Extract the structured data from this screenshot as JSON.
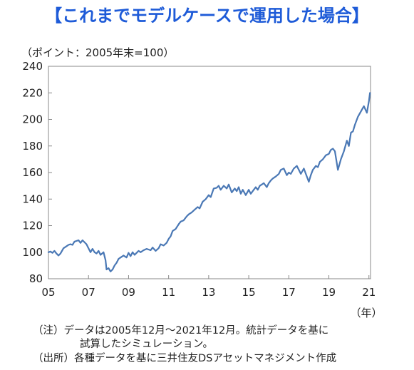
{
  "title": "【これまでモデルケースで運用した場合】",
  "notes": {
    "note_line1": "（注）データは2005年12月～2021年12月。統計データを基に",
    "note_line2": "試算したシミュレーション。",
    "source": "（出所）各種データを基に三井住友DSアセットマネジメント作成"
  },
  "chart_data": {
    "type": "line",
    "title": "",
    "ylabel": "（ポイント：2005年末=100）",
    "xlabel": "（年）",
    "ylim": [
      80,
      240
    ],
    "xlim": [
      2005,
      2021.08
    ],
    "yticks": [
      80,
      100,
      120,
      140,
      160,
      180,
      200,
      220,
      240
    ],
    "xticks": [
      2005,
      2007,
      2009,
      2011,
      2013,
      2015,
      2017,
      2019,
      2021
    ],
    "xtick_labels": [
      "05",
      "07",
      "09",
      "11",
      "13",
      "15",
      "17",
      "19",
      "21"
    ],
    "grid": false,
    "line_color": "#4a78b5",
    "series": [
      {
        "name": "",
        "x": [
          2005.0,
          2005.1,
          2005.2,
          2005.3,
          2005.4,
          2005.5,
          2005.6,
          2005.75,
          2005.9,
          2006.0,
          2006.1,
          2006.2,
          2006.3,
          2006.5,
          2006.6,
          2006.7,
          2006.9,
          2007.0,
          2007.1,
          2007.2,
          2007.3,
          2007.4,
          2007.5,
          2007.6,
          2007.75,
          2007.85,
          2007.9,
          2008.0,
          2008.1,
          2008.2,
          2008.3,
          2008.4,
          2008.5,
          2008.6,
          2008.75,
          2008.9,
          2009.0,
          2009.1,
          2009.2,
          2009.3,
          2009.4,
          2009.5,
          2009.6,
          2009.75,
          2009.9,
          2010.0,
          2010.1,
          2010.2,
          2010.35,
          2010.5,
          2010.6,
          2010.75,
          2010.9,
          2011.0,
          2011.1,
          2011.2,
          2011.35,
          2011.5,
          2011.6,
          2011.75,
          2011.9,
          2012.0,
          2012.15,
          2012.3,
          2012.45,
          2012.55,
          2012.7,
          2012.85,
          2013.0,
          2013.1,
          2013.25,
          2013.4,
          2013.5,
          2013.6,
          2013.75,
          2013.9,
          2014.0,
          2014.15,
          2014.3,
          2014.4,
          2014.5,
          2014.6,
          2014.7,
          2014.85,
          2015.0,
          2015.1,
          2015.2,
          2015.35,
          2015.45,
          2015.55,
          2015.65,
          2015.75,
          2015.9,
          2016.0,
          2016.1,
          2016.2,
          2016.35,
          2016.5,
          2016.6,
          2016.75,
          2016.9,
          2017.0,
          2017.1,
          2017.25,
          2017.4,
          2017.5,
          2017.6,
          2017.75,
          2017.9,
          2018.0,
          2018.1,
          2018.2,
          2018.35,
          2018.45,
          2018.55,
          2018.7,
          2018.85,
          2019.0,
          2019.1,
          2019.2,
          2019.3,
          2019.45,
          2019.6,
          2019.75,
          2019.9,
          2020.0,
          2020.1,
          2020.2,
          2020.3,
          2020.45,
          2020.6,
          2020.75,
          2020.9,
          2021.0,
          2021.05
        ],
        "values": [
          100,
          100.5,
          99.5,
          101,
          99,
          97.5,
          99,
          103,
          104.5,
          105.5,
          106,
          105.5,
          108,
          109,
          107,
          109,
          106,
          103,
          100,
          102.5,
          100,
          99,
          101,
          98,
          100,
          94,
          87,
          88,
          85.5,
          87,
          90,
          92,
          95,
          96,
          97.5,
          96,
          99.5,
          97,
          100,
          98,
          99.5,
          101,
          100,
          101.5,
          102.5,
          102,
          101.5,
          103.5,
          101,
          103,
          106,
          105,
          107,
          110,
          112,
          116,
          117.5,
          121,
          123,
          124,
          127,
          128.5,
          130,
          132,
          134,
          133,
          138,
          140,
          143,
          141.5,
          148,
          148.5,
          150,
          147,
          150,
          148,
          151,
          145,
          148,
          146,
          149,
          144,
          147,
          143,
          147,
          144,
          146,
          149,
          147,
          150,
          151,
          152,
          149,
          152,
          154,
          155.5,
          157,
          159,
          162,
          163,
          158,
          160,
          159,
          163,
          165,
          162,
          159,
          163,
          157,
          153,
          158,
          162,
          165,
          164,
          168,
          170,
          173,
          174,
          177,
          178,
          176,
          162,
          170,
          176,
          184,
          180,
          190,
          191,
          196,
          202,
          206,
          210,
          205,
          214,
          220
        ]
      }
    ]
  }
}
